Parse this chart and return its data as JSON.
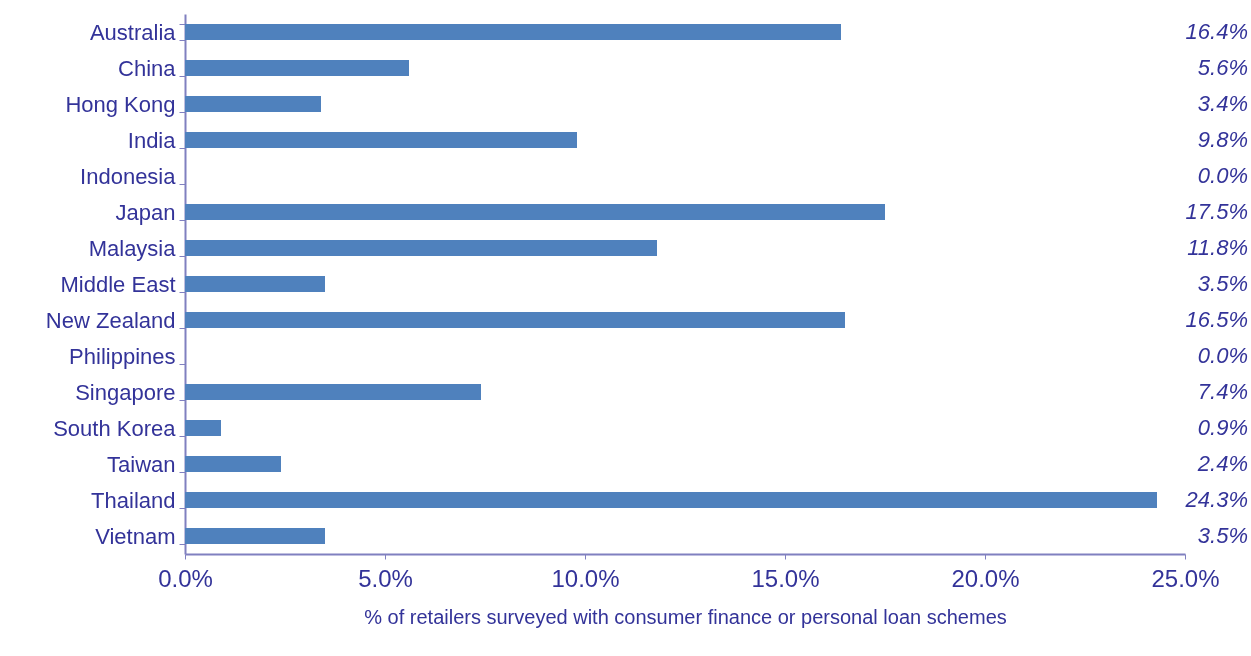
{
  "chart_data": {
    "type": "bar",
    "orientation": "horizontal",
    "xlabel": "% of retailers surveyed with consumer finance or personal loan schemes",
    "categories": [
      "Australia",
      "China",
      "Hong Kong",
      "India",
      "Indonesia",
      "Japan",
      "Malaysia",
      "Middle East",
      "New Zealand",
      "Philippines",
      "Singapore",
      "South Korea",
      "Taiwan",
      "Thailand",
      "Vietnam"
    ],
    "values": [
      16.4,
      5.6,
      3.4,
      9.8,
      0.0,
      17.5,
      11.8,
      3.5,
      16.5,
      0.0,
      7.4,
      0.9,
      2.4,
      24.3,
      3.5
    ],
    "value_labels": [
      "16.4%",
      "5.6%",
      "3.4%",
      "9.8%",
      "0.0%",
      "17.5%",
      "11.8%",
      "3.5%",
      "16.5%",
      "0.0%",
      "7.4%",
      "0.9%",
      "2.4%",
      "24.3%",
      "3.5%"
    ],
    "color": "#4f81bd",
    "xlim": [
      0,
      25
    ],
    "xticks": [
      {
        "value": 0,
        "label": "0.0%"
      },
      {
        "value": 5,
        "label": "5.0%"
      },
      {
        "value": 10,
        "label": "10.0%"
      },
      {
        "value": 15,
        "label": "15.0%"
      },
      {
        "value": 20,
        "label": "20.0%"
      },
      {
        "value": 25,
        "label": "25.0%"
      }
    ],
    "grid": false
  }
}
